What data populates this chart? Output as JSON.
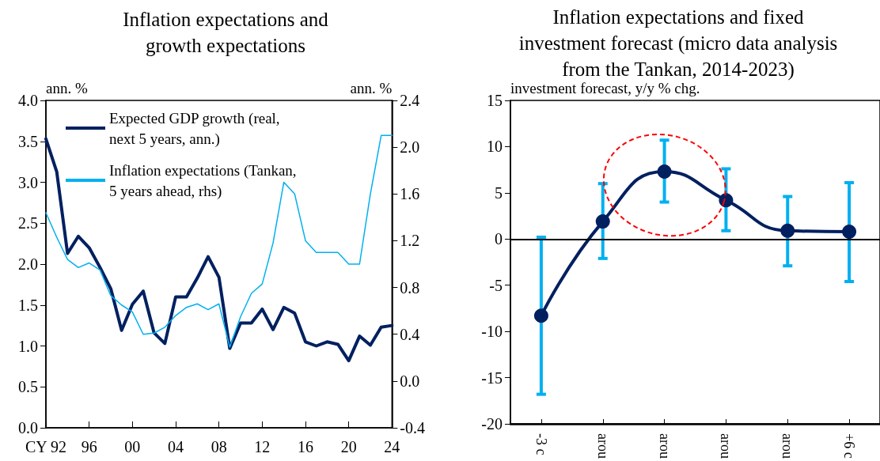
{
  "chart_data": [
    {
      "type": "line",
      "title": "Inflation expectations and\ngrowth expectations",
      "ylabel": "ann. %",
      "y2label": "ann. %",
      "x": [
        1992,
        1993,
        1994,
        1995,
        1996,
        1997,
        1998,
        1999,
        2000,
        2001,
        2002,
        2003,
        2004,
        2005,
        2006,
        2007,
        2008,
        2009,
        2010,
        2011,
        2012,
        2013,
        2014,
        2015,
        2016,
        2017,
        2018,
        2019,
        2020,
        2021,
        2022,
        2023,
        2024
      ],
      "xlim": [
        1992,
        2024
      ],
      "xticks": [
        {
          "value": 1992,
          "label": "CY 92"
        },
        {
          "value": 1996,
          "label": "96"
        },
        {
          "value": 2000,
          "label": "00"
        },
        {
          "value": 2004,
          "label": "04"
        },
        {
          "value": 2008,
          "label": "08"
        },
        {
          "value": 2012,
          "label": "12"
        },
        {
          "value": 2016,
          "label": "16"
        },
        {
          "value": 2020,
          "label": "20"
        },
        {
          "value": 2024,
          "label": "24"
        }
      ],
      "ylim": [
        0,
        4
      ],
      "yticks": [
        {
          "value": 0,
          "label": "0.0"
        },
        0.5,
        {
          "value": 1,
          "label": "1.0"
        },
        1.5,
        {
          "value": 2,
          "label": "2.0"
        },
        2.5,
        {
          "value": 3,
          "label": "3.0"
        },
        3.5,
        {
          "value": 4,
          "label": "4.0"
        }
      ],
      "y2lim": [
        -0.4,
        2.4
      ],
      "y2ticks": [
        -0.4,
        {
          "value": 0,
          "label": "0.0"
        },
        0.4,
        0.8,
        1.2,
        1.6,
        {
          "value": 2,
          "label": "2.0"
        },
        2.4
      ],
      "series": [
        {
          "name": "Expected GDP growth (real,\nnext 5 years, ann.)",
          "color": "#002060",
          "values": [
            3.53,
            3.13,
            2.13,
            2.34,
            2.2,
            1.96,
            1.7,
            1.19,
            1.51,
            1.67,
            1.16,
            1.03,
            1.6,
            1.6,
            1.83,
            2.09,
            1.84,
            0.97,
            1.28,
            1.28,
            1.45,
            1.2,
            1.47,
            1.4,
            1.05,
            1.0,
            1.05,
            1.02,
            0.82,
            1.12,
            1.01,
            1.23,
            1.25
          ]
        },
        {
          "name": "Inflation expectations (Tankan,\n5 years ahead, rhs)",
          "color": "#00b0f0",
          "axis": "y2",
          "values": [
            1.44,
            1.23,
            1.04,
            0.97,
            1.01,
            0.95,
            0.73,
            0.65,
            0.59,
            0.4,
            0.41,
            0.46,
            0.56,
            0.63,
            0.66,
            0.61,
            0.66,
            0.29,
            0.55,
            0.75,
            0.83,
            1.18,
            1.7,
            1.6,
            1.2,
            1.1,
            1.1,
            1.1,
            1.0,
            1.0,
            1.6,
            2.1,
            2.1
          ]
        }
      ],
      "legend": "top left",
      "grid": false,
      "marker": "none"
    },
    {
      "type": "line",
      "title": "Inflation expectations and fixed\ninvestment forecast (micro data analysis\nfrom the Tankan, 2014-2023)",
      "ylabel": "investment forecast, y/y % chg.",
      "categories": [
        "-3 c",
        "arou",
        "arou",
        "arou",
        "arou",
        "+6 c"
      ],
      "series": [
        {
          "color": "#002060",
          "values": [
            -8.3,
            1.9,
            7.3,
            4.2,
            0.9,
            0.8
          ],
          "errors": [
            [
              -16.8,
              0.2
            ],
            [
              -2.1,
              6.0
            ],
            [
              4.0,
              10.7
            ],
            [
              0.9,
              7.6
            ],
            [
              -2.9,
              4.6
            ],
            [
              -4.6,
              6.1
            ]
          ]
        }
      ],
      "ylim": [
        -20,
        15
      ],
      "yticks": [
        -20,
        -15,
        -10,
        -5,
        0,
        5,
        10,
        15
      ],
      "ref_lines": [
        {
          "axis": "y",
          "value": 0
        }
      ],
      "legend": false,
      "grid": false,
      "marker": "circle"
    }
  ]
}
